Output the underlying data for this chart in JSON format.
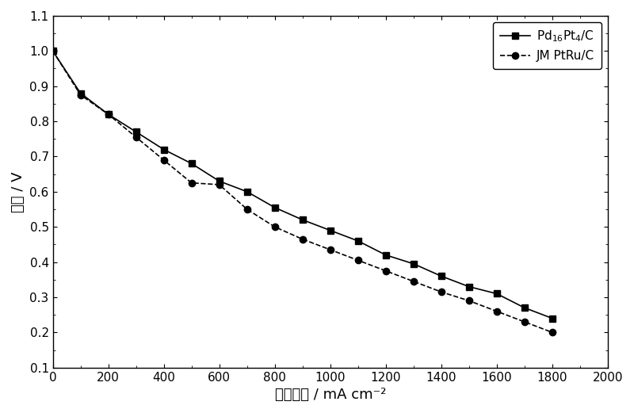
{
  "pd_x": [
    0,
    100,
    200,
    300,
    400,
    500,
    600,
    700,
    800,
    900,
    1000,
    1100,
    1200,
    1300,
    1400,
    1500,
    1600,
    1700,
    1800
  ],
  "pd_y": [
    1.0,
    0.88,
    0.82,
    0.77,
    0.72,
    0.68,
    0.63,
    0.6,
    0.555,
    0.52,
    0.49,
    0.46,
    0.42,
    0.395,
    0.36,
    0.33,
    0.31,
    0.27,
    0.24
  ],
  "jm_x": [
    0,
    100,
    200,
    300,
    400,
    500,
    600,
    700,
    800,
    900,
    1000,
    1100,
    1200,
    1300,
    1400,
    1500,
    1600,
    1700,
    1800
  ],
  "jm_y": [
    1.0,
    0.875,
    0.82,
    0.755,
    0.69,
    0.625,
    0.62,
    0.55,
    0.5,
    0.465,
    0.435,
    0.405,
    0.375,
    0.345,
    0.315,
    0.29,
    0.26,
    0.23,
    0.2
  ],
  "xlabel": "电流密度 / mA cm⁻²",
  "ylabel": "电位 / V",
  "xlim": [
    0,
    2000
  ],
  "ylim": [
    0.1,
    1.1
  ],
  "xticks": [
    0,
    200,
    400,
    600,
    800,
    1000,
    1200,
    1400,
    1600,
    1800,
    2000
  ],
  "yticks": [
    0.1,
    0.2,
    0.3,
    0.4,
    0.5,
    0.6,
    0.7,
    0.8,
    0.9,
    1.0,
    1.1
  ],
  "jm_label": "JM PtRu/C",
  "line_color": "#000000",
  "bg_color": "#ffffff",
  "pd_linestyle": "-",
  "jm_linestyle": "--",
  "marker_size": 6,
  "linewidth": 1.2,
  "legend_fontsize": 11,
  "tick_labelsize": 11,
  "axis_labelsize": 13
}
